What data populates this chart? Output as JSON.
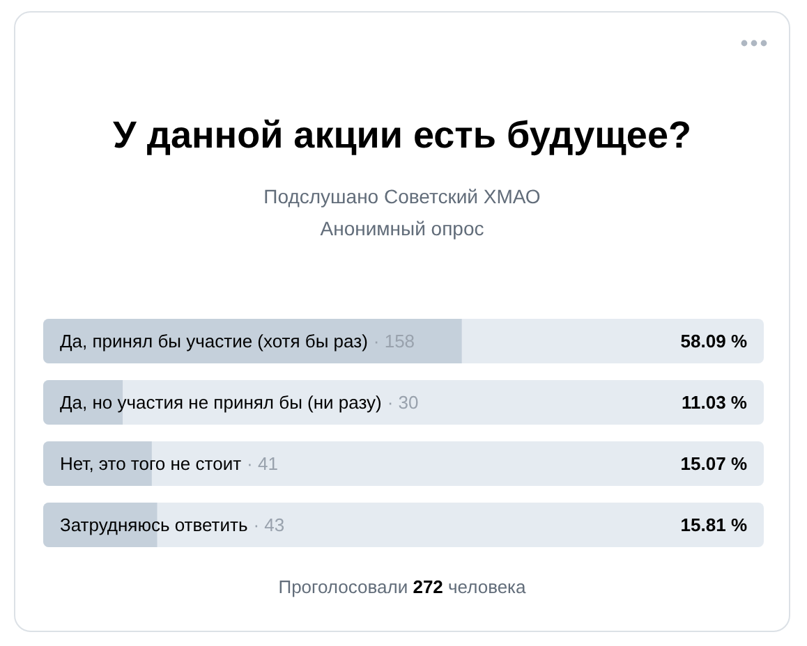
{
  "chart_data": {
    "type": "bar",
    "orientation": "horizontal",
    "title": "У данной акции есть будущее?",
    "subtitle": "Подслушано Советский ХМАО\nАнонимный опрос",
    "categories": [
      "Да, принял бы участие (хотя бы раз)",
      "Да, но участия не принял бы (ни разу)",
      "Нет, это того не стоит",
      "Затрудняюсь ответить"
    ],
    "values": [
      58.09,
      11.03,
      15.07,
      15.81
    ],
    "color": "#c5d0db",
    "value_labels": [
      "58.09 %",
      "11.03 %",
      "15.07 %",
      "15.81 %"
    ],
    "xlim": [
      0,
      100
    ],
    "tick_labels": false,
    "annotations": [
      "· 158",
      "· 30",
      "· 41",
      "· 43",
      "Проголосовали 272 человека"
    ]
  }
}
